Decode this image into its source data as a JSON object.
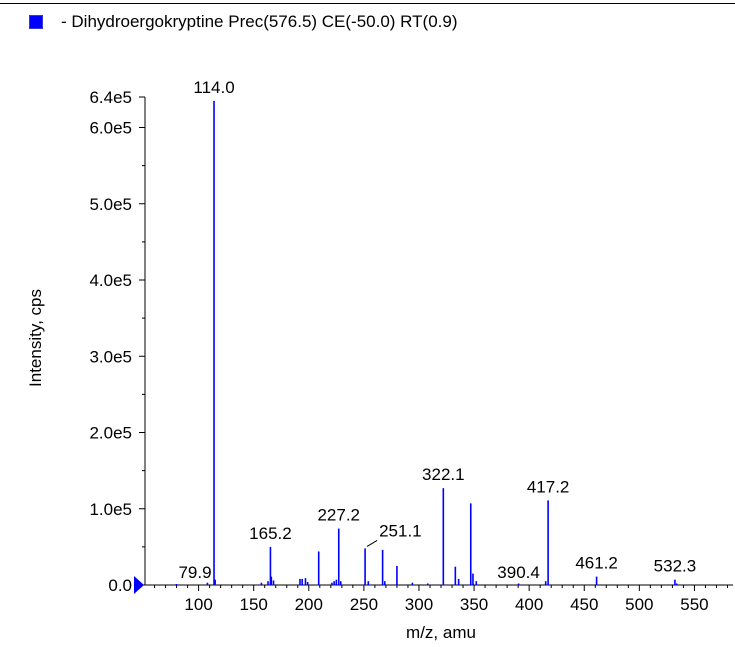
{
  "legend": {
    "label": "- Dihydroergokryptine Prec(576.5) CE(-50.0) RT(0.9)",
    "color": "#0000ff"
  },
  "chart_data": {
    "type": "bar",
    "title": "",
    "xlabel": "m/z, amu",
    "ylabel": "Intensity, cps",
    "xlim": [
      45,
      585
    ],
    "ylim": [
      0,
      640000
    ],
    "x_ticks": [
      100,
      150,
      200,
      250,
      300,
      350,
      400,
      450,
      500,
      550
    ],
    "x_tick_labels": [
      "100",
      "150",
      "200",
      "250",
      "300",
      "350",
      "400",
      "450",
      "500",
      "550"
    ],
    "y_ticks": [
      0,
      100000,
      200000,
      300000,
      400000,
      500000,
      600000,
      640000
    ],
    "y_tick_labels": [
      "0.0",
      "1.0e5",
      "2.0e5",
      "3.0e5",
      "4.0e5",
      "5.0e5",
      "6.0e5",
      "6.4e5"
    ],
    "bar_color": "#0000ff",
    "peaks": [
      {
        "mz": 79.9,
        "intensity": 1000,
        "label": "79.9"
      },
      {
        "mz": 108.0,
        "intensity": 3000
      },
      {
        "mz": 114.0,
        "intensity": 635000,
        "label": "114.0"
      },
      {
        "mz": 115.0,
        "intensity": 7000
      },
      {
        "mz": 157.0,
        "intensity": 3000
      },
      {
        "mz": 163.0,
        "intensity": 5000
      },
      {
        "mz": 165.2,
        "intensity": 50000,
        "label": "165.2"
      },
      {
        "mz": 166.0,
        "intensity": 11000
      },
      {
        "mz": 168.0,
        "intensity": 6000
      },
      {
        "mz": 192.0,
        "intensity": 8000
      },
      {
        "mz": 194.0,
        "intensity": 8000
      },
      {
        "mz": 197.0,
        "intensity": 9000
      },
      {
        "mz": 199.0,
        "intensity": 4000
      },
      {
        "mz": 209.0,
        "intensity": 44000
      },
      {
        "mz": 221.0,
        "intensity": 3000
      },
      {
        "mz": 223.0,
        "intensity": 5000
      },
      {
        "mz": 225.0,
        "intensity": 7000
      },
      {
        "mz": 227.2,
        "intensity": 74000,
        "label": "227.2"
      },
      {
        "mz": 229.0,
        "intensity": 5000
      },
      {
        "mz": 251.1,
        "intensity": 48000,
        "label": "251.1"
      },
      {
        "mz": 254.0,
        "intensity": 5000
      },
      {
        "mz": 267.0,
        "intensity": 46000
      },
      {
        "mz": 269.0,
        "intensity": 5000
      },
      {
        "mz": 280.0,
        "intensity": 25000
      },
      {
        "mz": 294.0,
        "intensity": 3000
      },
      {
        "mz": 308.0,
        "intensity": 2000
      },
      {
        "mz": 322.1,
        "intensity": 127000,
        "label": "322.1"
      },
      {
        "mz": 333.0,
        "intensity": 24000
      },
      {
        "mz": 336.0,
        "intensity": 8000
      },
      {
        "mz": 347.0,
        "intensity": 107000
      },
      {
        "mz": 349.0,
        "intensity": 15000
      },
      {
        "mz": 352.0,
        "intensity": 5000
      },
      {
        "mz": 390.4,
        "intensity": 2000,
        "label": "390.4"
      },
      {
        "mz": 415.0,
        "intensity": 5000
      },
      {
        "mz": 417.2,
        "intensity": 111000,
        "label": "417.2"
      },
      {
        "mz": 461.2,
        "intensity": 11000,
        "label": "461.2"
      },
      {
        "mz": 532.3,
        "intensity": 7000,
        "label": "532.3"
      },
      {
        "mz": 534.0,
        "intensity": 2000
      }
    ]
  }
}
